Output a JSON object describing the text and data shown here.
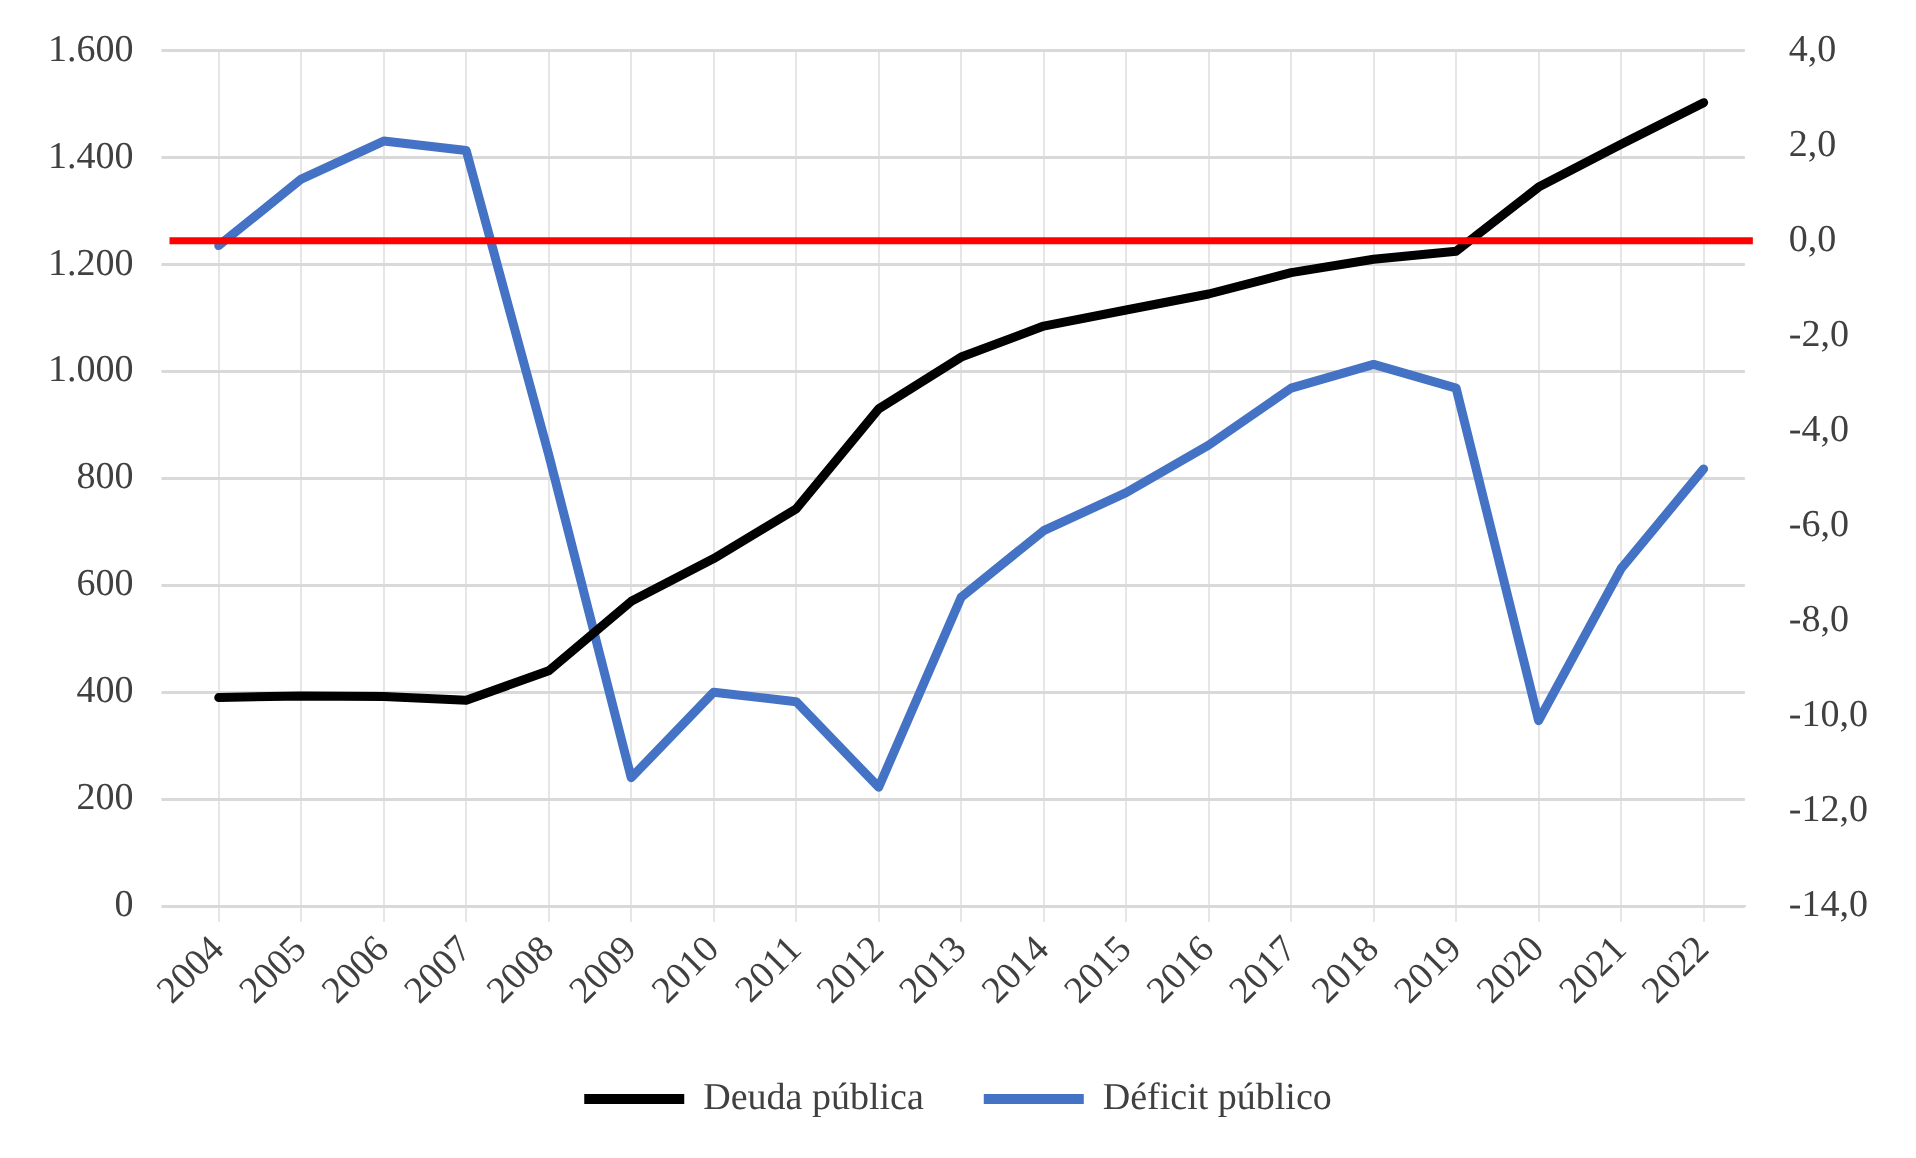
{
  "chart_data": {
    "type": "line",
    "categories": [
      "2004",
      "2005",
      "2006",
      "2007",
      "2008",
      "2009",
      "2010",
      "2011",
      "2012",
      "2013",
      "2014",
      "2015",
      "2016",
      "2017",
      "2018",
      "2019",
      "2020",
      "2021",
      "2022"
    ],
    "series": [
      {
        "name": "Deuda pública",
        "color": "#000000",
        "values": [
          390,
          393,
          392,
          385,
          440,
          570,
          650,
          743,
          930,
          1027,
          1085,
          1115,
          1145,
          1185,
          1210,
          1225,
          1345,
          1425,
          1503
        ]
      },
      {
        "name": "Déficit público",
        "color": "#4472c4",
        "axis": "y2",
        "values": [
          -0.1,
          1.3,
          2.1,
          1.9,
          -4.5,
          -11.3,
          -9.5,
          -9.7,
          -11.5,
          -7.5,
          -6.1,
          -5.3,
          -4.3,
          -3.1,
          -2.6,
          -3.1,
          -10.1,
          -6.9,
          -4.8
        ]
      }
    ],
    "ylim": [
      0,
      1600
    ],
    "yticks": [
      {
        "value": 0,
        "label": "0"
      },
      {
        "value": 200,
        "label": "200"
      },
      {
        "value": 400,
        "label": "400"
      },
      {
        "value": 600,
        "label": "600"
      },
      {
        "value": 800,
        "label": "800"
      },
      {
        "value": 1000,
        "label": "1.000"
      },
      {
        "value": 1200,
        "label": "1.200"
      },
      {
        "value": 1400,
        "label": "1.400"
      },
      {
        "value": 1600,
        "label": "1.600"
      }
    ],
    "y2lim": [
      -14,
      4
    ],
    "y2ticks": [
      {
        "value": -14,
        "label": "-14,0"
      },
      {
        "value": -12,
        "label": "-12,0"
      },
      {
        "value": -10,
        "label": "-10,0"
      },
      {
        "value": -8,
        "label": "-8,0"
      },
      {
        "value": -6,
        "label": "-6,0"
      },
      {
        "value": -4,
        "label": "-4,0"
      },
      {
        "value": -2,
        "label": "-2,0"
      },
      {
        "value": 0,
        "label": "0,0"
      },
      {
        "value": 2,
        "label": "2,0"
      },
      {
        "value": 4,
        "label": "4,0"
      }
    ],
    "ref_lines": [
      {
        "axis": "y2",
        "value": 0,
        "color": "#ff0000"
      }
    ],
    "grid": true,
    "legend": "bottom",
    "marker": "none",
    "line_style": "solid"
  }
}
